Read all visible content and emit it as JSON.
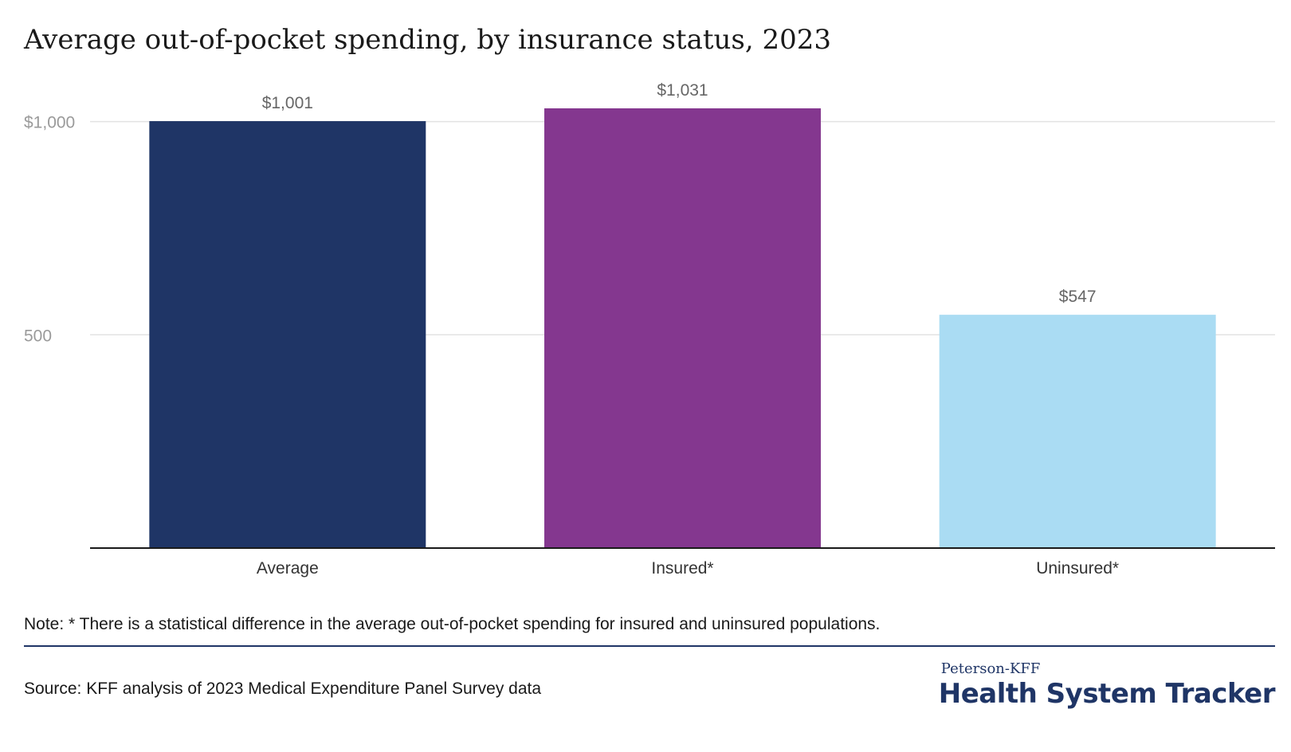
{
  "chart_data": {
    "type": "bar",
    "title": "Average out-of-pocket spending, by insurance status, 2023",
    "categories": [
      "Average",
      "Insured*",
      "Uninsured*"
    ],
    "values": [
      1001,
      1031,
      547
    ],
    "data_labels": [
      "$1,001",
      "$1,031",
      "$547"
    ],
    "colors": [
      "#1f3566",
      "#84378f",
      "#aadcf3"
    ],
    "ylim": [
      0,
      1031
    ],
    "yticks": [
      {
        "value": 500,
        "label": "500"
      },
      {
        "value": 1000,
        "label": "$1,000"
      }
    ],
    "grid": true,
    "xlabel": "",
    "ylabel": ""
  },
  "note": "Note: * There is a statistical difference in the average out-of-pocket spending for insured and uninsured populations.",
  "source": "Source: KFF analysis of 2023 Medical Expenditure Panel Survey data",
  "logo": {
    "line1": "Peterson-KFF",
    "line2": "Health System Tracker"
  }
}
